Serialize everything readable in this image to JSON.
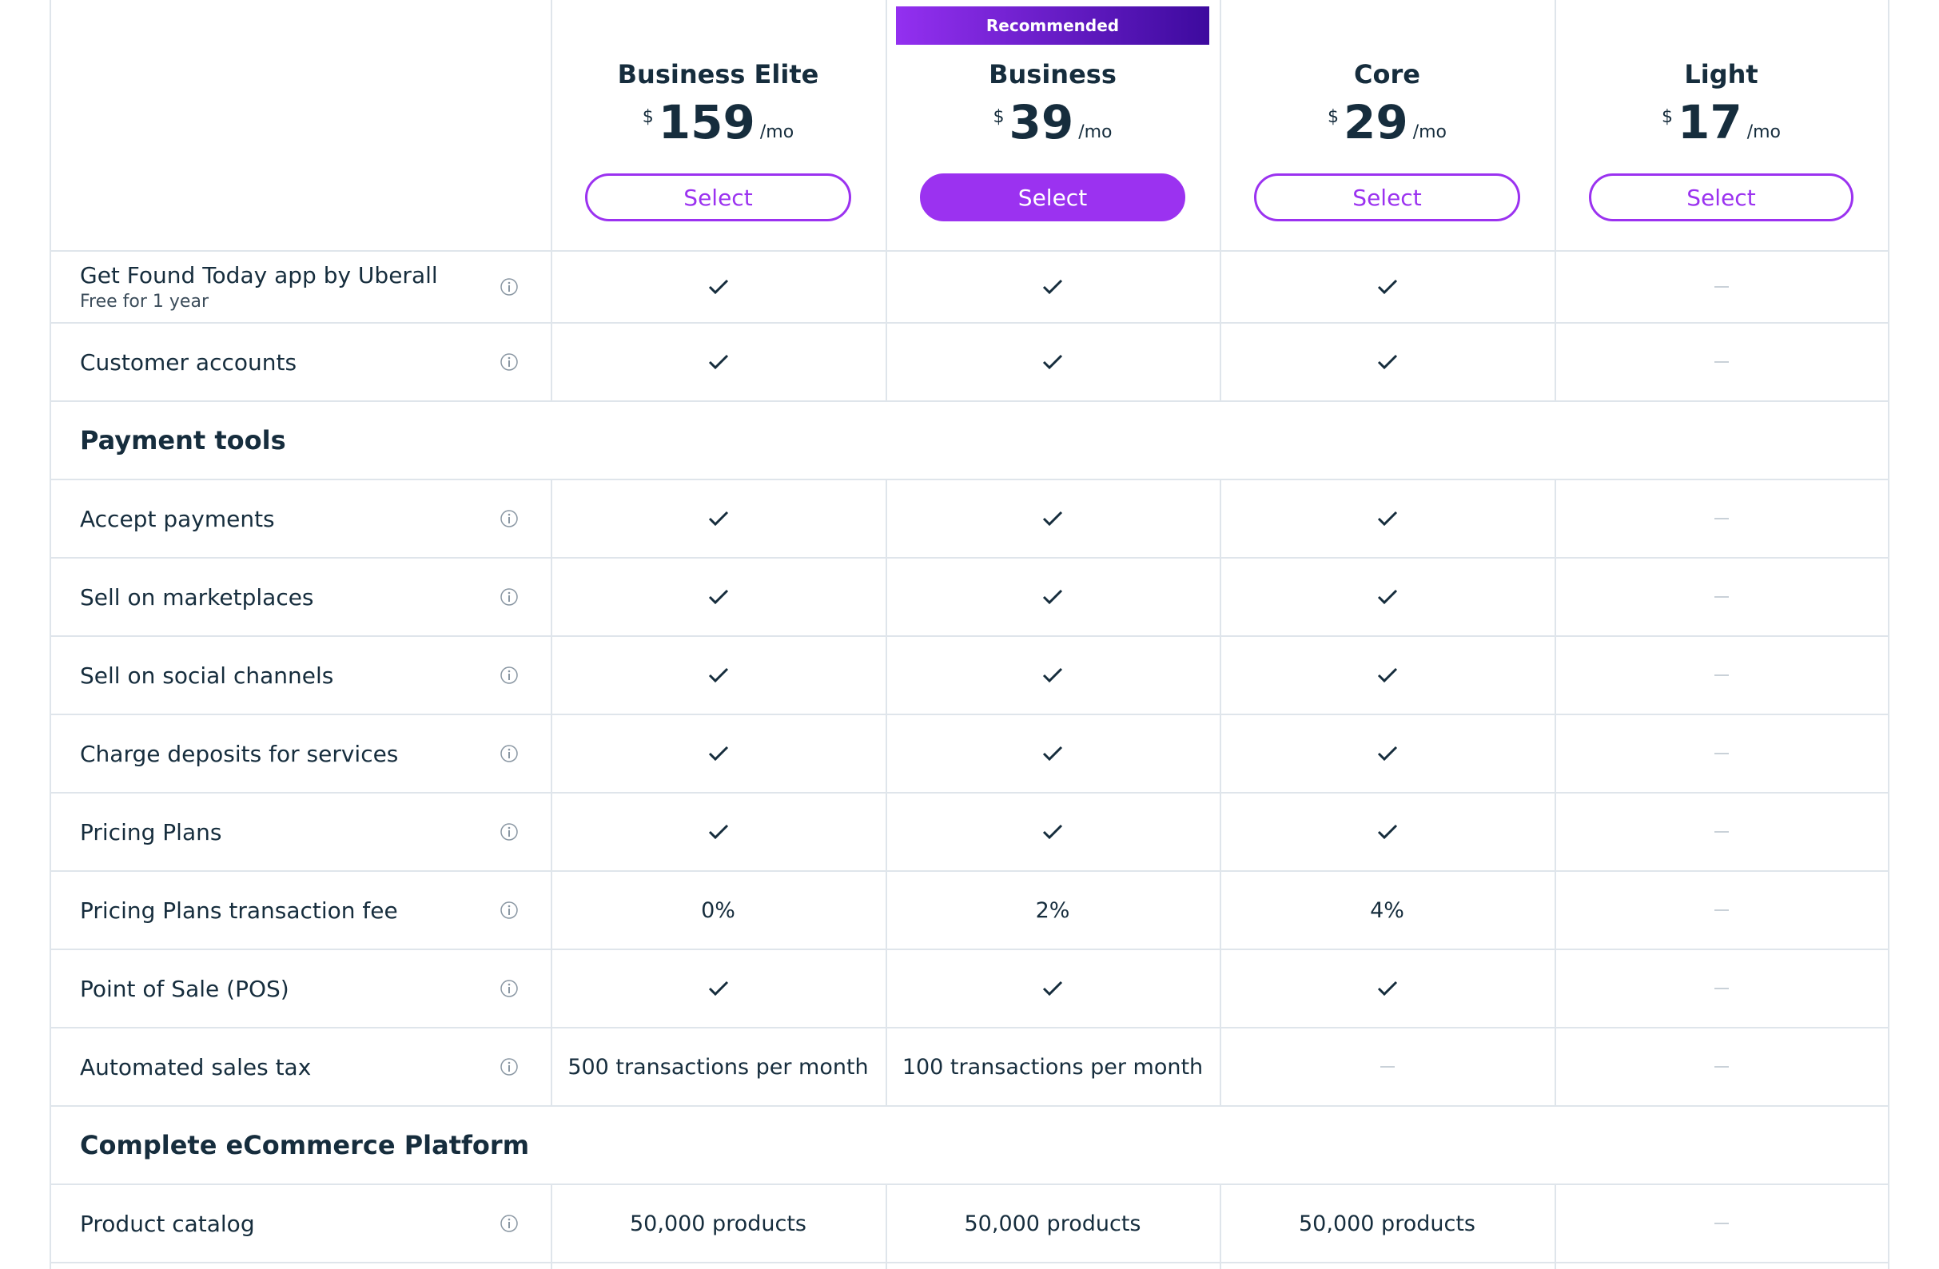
{
  "recommended": "Recommended",
  "plans": [
    {
      "name": "Business Elite",
      "currency": "$",
      "price": 159,
      "period": "/mo",
      "button": "Select",
      "recommended": false
    },
    {
      "name": "Business",
      "currency": "$",
      "price": 39,
      "period": "/mo",
      "button": "Select",
      "recommended": true
    },
    {
      "name": "Core",
      "currency": "$",
      "price": 29,
      "period": "/mo",
      "button": "Select",
      "recommended": false
    },
    {
      "name": "Light",
      "currency": "$",
      "price": 17,
      "period": "/mo",
      "button": "Select",
      "recommended": false
    }
  ],
  "rows": [
    {
      "type": "feature",
      "label": "Get Found Today app by Uberall",
      "note": "Free for 1 year",
      "cells": [
        true,
        true,
        true,
        false
      ]
    },
    {
      "type": "feature",
      "label": "Customer accounts",
      "cells": [
        true,
        true,
        true,
        false
      ]
    },
    {
      "type": "section",
      "label": "Payment tools"
    },
    {
      "type": "feature",
      "label": "Accept payments",
      "cells": [
        true,
        true,
        true,
        false
      ]
    },
    {
      "type": "feature",
      "label": "Sell on marketplaces",
      "cells": [
        true,
        true,
        true,
        false
      ]
    },
    {
      "type": "feature",
      "label": "Sell on social channels",
      "cells": [
        true,
        true,
        true,
        false
      ]
    },
    {
      "type": "feature",
      "label": "Charge deposits for services",
      "cells": [
        true,
        true,
        true,
        false
      ]
    },
    {
      "type": "feature",
      "label": "Pricing Plans",
      "cells": [
        true,
        true,
        true,
        false
      ]
    },
    {
      "type": "feature",
      "label": "Pricing Plans transaction fee",
      "cells": [
        "0%",
        "2%",
        "4%",
        false
      ]
    },
    {
      "type": "feature",
      "label": "Point of Sale (POS)",
      "cells": [
        true,
        true,
        true,
        false
      ]
    },
    {
      "type": "feature",
      "label": "Automated sales tax",
      "cells": [
        "500 transactions per month",
        "100 transactions per month",
        false,
        false
      ]
    },
    {
      "type": "section",
      "label": "Complete eCommerce Platform"
    },
    {
      "type": "feature",
      "label": "Product catalog",
      "cells": [
        "50,000 products",
        "50,000 products",
        "50,000 products",
        false
      ]
    }
  ]
}
